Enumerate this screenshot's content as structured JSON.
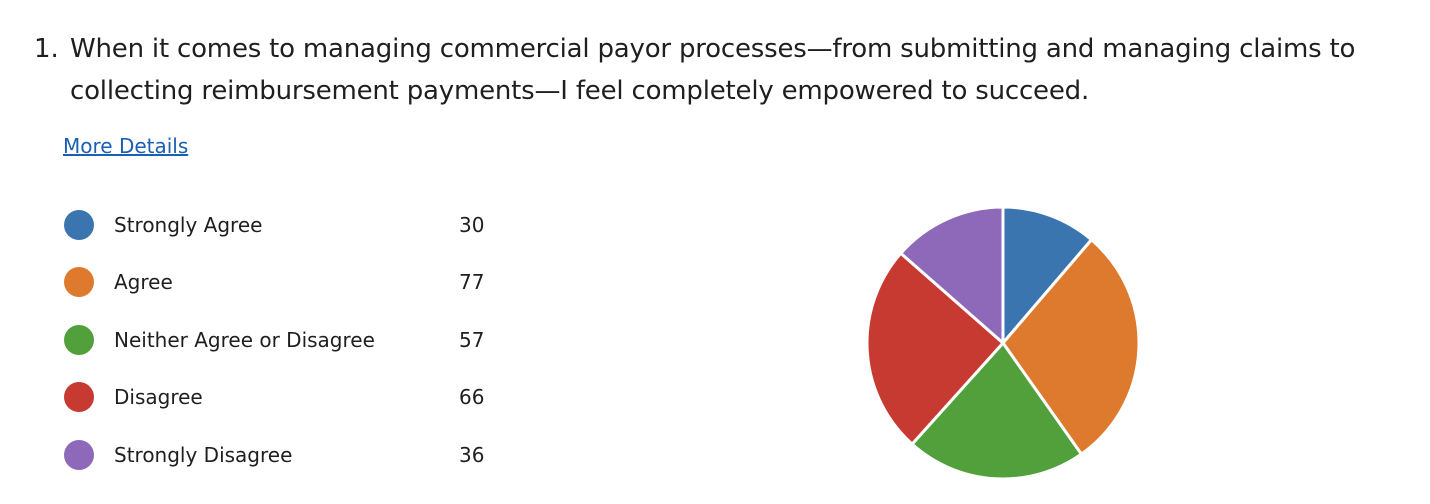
{
  "question": {
    "number": "1.",
    "text": "When it comes to managing commercial payor processes—from submitting and managing claims to collecting reimbursement payments—I feel completely empowered to succeed."
  },
  "more_details_link": "More Details",
  "chart_data": {
    "type": "pie",
    "categories": [
      "Strongly Agree",
      "Agree",
      "Neither Agree or Disagree",
      "Disagree",
      "Strongly Disagree"
    ],
    "values": [
      30,
      77,
      57,
      66,
      36
    ],
    "colors": [
      "#3a75b0",
      "#de7a2e",
      "#52a03b",
      "#c63a32",
      "#8e68b9"
    ],
    "start_angle_deg": 0,
    "direction": "clockwise",
    "legend_placement": "left"
  }
}
